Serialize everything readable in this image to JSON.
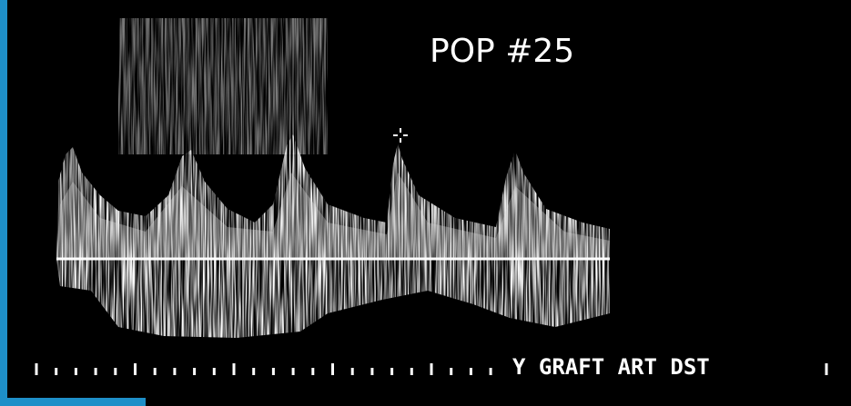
{
  "annotation": "POP #25",
  "label": "Y GRAFT ART DST"
}
